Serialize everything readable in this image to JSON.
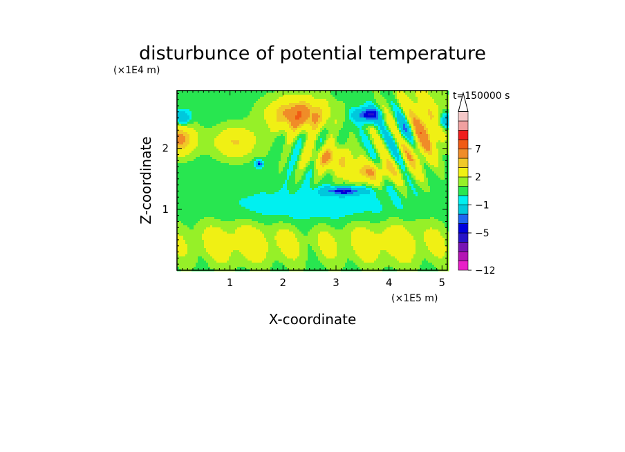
{
  "chart_data": {
    "type": "heatmap",
    "title": "disturbunce of potential temperature",
    "xlabel": "X-coordinate",
    "ylabel": "Z-coordinate",
    "x_unit": "(×1E5 m)",
    "y_unit": "(×1E4 m)",
    "time_label": "t=150000 s",
    "xlim": [
      0,
      5.1
    ],
    "ylim": [
      0,
      2.95
    ],
    "x_ticks": [
      1,
      2,
      3,
      4,
      5
    ],
    "y_ticks": [
      1,
      2
    ],
    "legend_position": "right",
    "colorbar": {
      "levels": [
        -12,
        -10,
        -8,
        -6,
        -5,
        -4,
        -3,
        -1,
        0,
        1,
        2,
        4,
        5,
        7,
        8,
        9,
        10
      ],
      "labeled_levels": [
        -12,
        -5,
        -1,
        2,
        7
      ],
      "colors": [
        "#e81ec8",
        "#b414b4",
        "#7814b4",
        "#2814c8",
        "#0000dc",
        "#1e64f0",
        "#00c8dc",
        "#00f0f0",
        "#28e650",
        "#96f028",
        "#f0f014",
        "#f0c828",
        "#f08c28",
        "#f05a14",
        "#f01e1e",
        "#f0a0a0",
        "#f5c8c8"
      ],
      "overflow_color": "#ffffff"
    },
    "features": [
      {
        "x": 2.3,
        "z": 2.55,
        "sx": 0.55,
        "sz": 0.28,
        "value": 6
      },
      {
        "x": 4.5,
        "z": 2.3,
        "sx": 0.45,
        "sz": 0.55,
        "value": 6
      },
      {
        "x": 0.05,
        "z": 2.15,
        "sx": 0.3,
        "sz": 0.25,
        "value": 5
      },
      {
        "x": 1.1,
        "z": 2.1,
        "sx": 0.4,
        "sz": 0.25,
        "value": 3.5
      },
      {
        "x": 2.9,
        "z": 1.85,
        "sx": 0.4,
        "sz": 0.2,
        "value": 4
      },
      {
        "x": 3.6,
        "z": 1.6,
        "sx": 0.5,
        "sz": 0.18,
        "value": 4
      },
      {
        "x": 3.6,
        "z": 2.55,
        "sx": 0.25,
        "sz": 0.12,
        "value": -6
      },
      {
        "x": 4.3,
        "z": 2.3,
        "sx": 0.25,
        "sz": 0.35,
        "value": -6
      },
      {
        "x": 0.1,
        "z": 2.5,
        "sx": 0.15,
        "sz": 0.12,
        "value": -4
      },
      {
        "x": 5.05,
        "z": 2.45,
        "sx": 0.12,
        "sz": 0.12,
        "value": -4
      },
      {
        "x": 3.15,
        "z": 1.3,
        "sx": 0.4,
        "sz": 0.07,
        "value": -5
      },
      {
        "x": 1.55,
        "z": 1.75,
        "sx": 0.08,
        "sz": 0.06,
        "value": -5
      },
      {
        "x": 2.55,
        "z": 1.05,
        "sx": 1.6,
        "sz": 0.28,
        "value": -1.5
      },
      {
        "x": 1.2,
        "z": 0.45,
        "sx": 1.2,
        "sz": 0.35,
        "value": 2.5
      },
      {
        "x": 4.0,
        "z": 0.45,
        "sx": 1.2,
        "sz": 0.35,
        "value": 2.5
      }
    ]
  }
}
